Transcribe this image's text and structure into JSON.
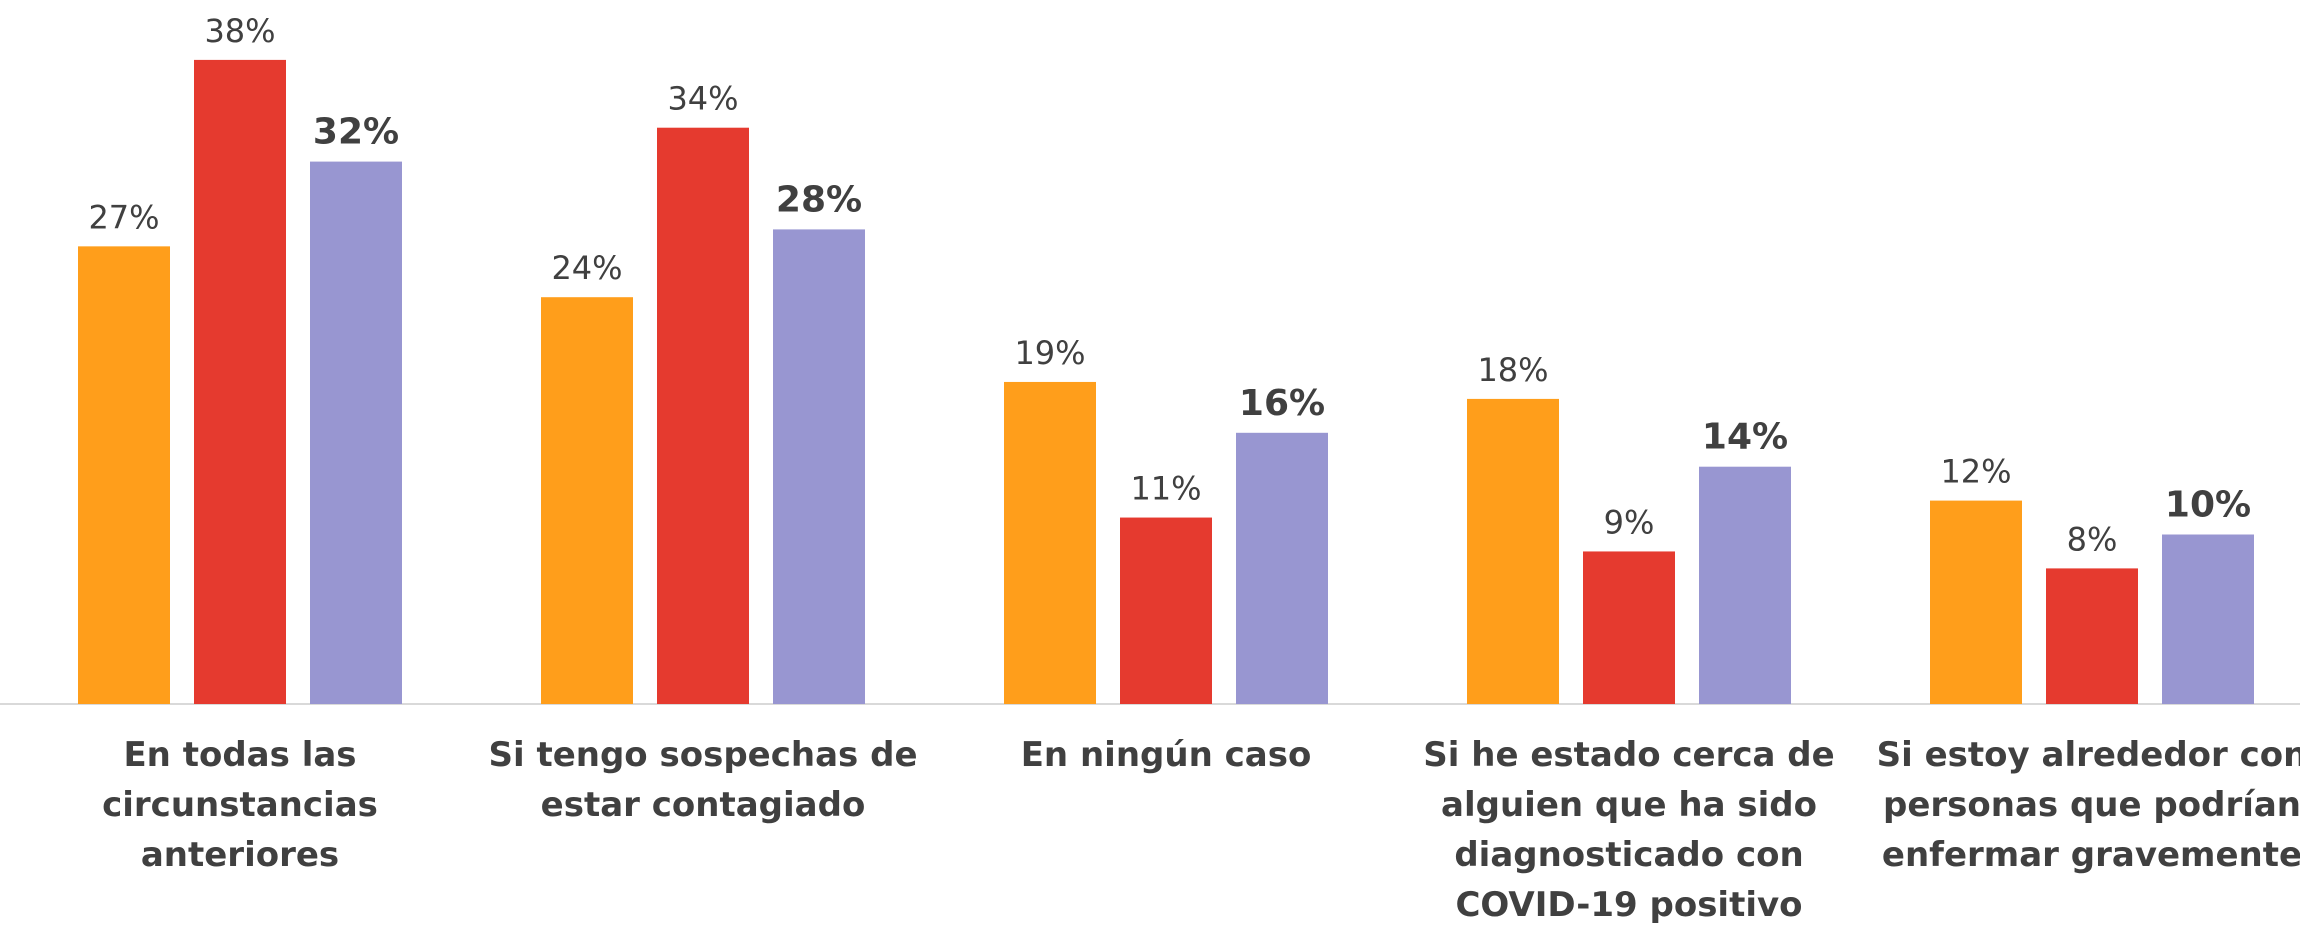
{
  "chart_data": {
    "type": "bar",
    "categories": [
      "En todas las circunstancias anteriores",
      "Si tengo sospechas de estar contagiado",
      "En ningún caso",
      "Si he estado cerca de alguien que ha sido diagnosticado con COVID-19 positivo",
      "Si estoy alrededor con personas que podrían enfermar gravemente"
    ],
    "series": [
      {
        "color": "#FF9E1B",
        "values": [
          27,
          24,
          19,
          18,
          12
        ],
        "value_labels": [
          "27%",
          "24%",
          "19%",
          "18%",
          "12%"
        ]
      },
      {
        "color": "#E53A2F",
        "values": [
          38,
          34,
          11,
          9,
          8
        ],
        "value_labels": [
          "38%",
          "34%",
          "11%",
          "9%",
          "8%"
        ]
      },
      {
        "color": "#9896D1",
        "values": [
          32,
          28,
          16,
          14,
          10
        ],
        "value_labels": [
          "32%",
          "28%",
          "16%",
          "14%",
          "10%"
        ],
        "bold_labels": true
      }
    ],
    "ylim": [
      0,
      40
    ]
  }
}
